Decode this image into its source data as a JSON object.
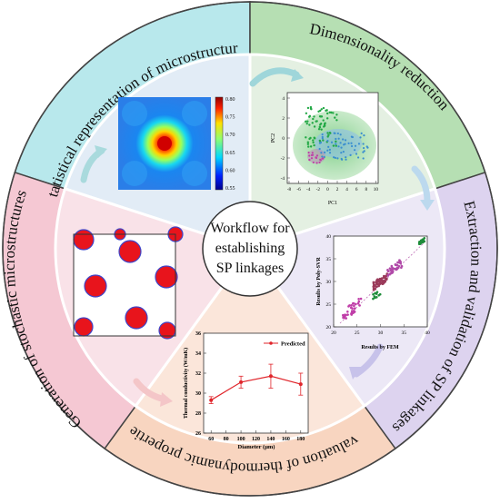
{
  "center": {
    "lines": [
      "Workflow for",
      "establishing",
      "SP linkages"
    ]
  },
  "ring_labels": {
    "statistical": "Statistical representation of microstructure",
    "dimensionality": "Dimensionality reduction",
    "extraction": "Extraction and validation of SP linkages",
    "evaluation": "Evaluation of thermodynamic properties",
    "generation": "Generation of stochastic microstructures"
  },
  "colors": {
    "ring_statistical": "#b8e8ec",
    "ring_dimensionality": "#b6dfb3",
    "ring_extraction": "#ddd3ef",
    "ring_evaluation": "#f8d5c0",
    "ring_generation": "#f5c8d3",
    "inner_statistical": "#e2ecf6",
    "inner_dimensionality": "#e4f0e2",
    "inner_extraction": "#ece8f6",
    "inner_evaluation": "#fbe6da",
    "inner_generation": "#f9e2e8",
    "arrow": "#a8d8dc",
    "particle_fill": "#e8141c",
    "particle_edge": "#3f44c8"
  },
  "colorbar": {
    "ticks": [
      "0.80",
      "0.75",
      "0.70",
      "0.65",
      "0.60",
      "0.55"
    ]
  },
  "pca_plot": {
    "xlabel": "PC1",
    "ylabel": "PC2",
    "xticks": [
      "-8",
      "-6",
      "-4",
      "-2",
      "0",
      "2",
      "4",
      "6",
      "8",
      "10"
    ],
    "yticks": [
      "-4",
      "-2",
      "0",
      "2",
      "4"
    ]
  },
  "validation_plot": {
    "xlabel": "Results by FEM",
    "ylabel": "Results by Poly-SVR",
    "xticks": [
      "20",
      "25",
      "30",
      "35",
      "40"
    ],
    "yticks": [
      "20",
      "25",
      "30",
      "35",
      "40"
    ]
  },
  "chart_data": {
    "type": "line",
    "title": "",
    "xlabel": "Diameter (μm)",
    "ylabel": "Thermal conductivity (W/mK)",
    "xlim": [
      50,
      190
    ],
    "ylim": [
      26,
      36
    ],
    "xticks": [
      "60",
      "80",
      "100",
      "120",
      "140",
      "160",
      "180"
    ],
    "yticks": [
      "26",
      "28",
      "30",
      "32",
      "34",
      "36"
    ],
    "legend": "top-right",
    "series": [
      {
        "name": "Predicted",
        "color": "#e0252b",
        "x": [
          60,
          100,
          140,
          180
        ],
        "y": [
          29.3,
          31.1,
          31.7,
          30.9
        ],
        "err": [
          0.35,
          0.6,
          1.2,
          1.1
        ]
      }
    ]
  }
}
